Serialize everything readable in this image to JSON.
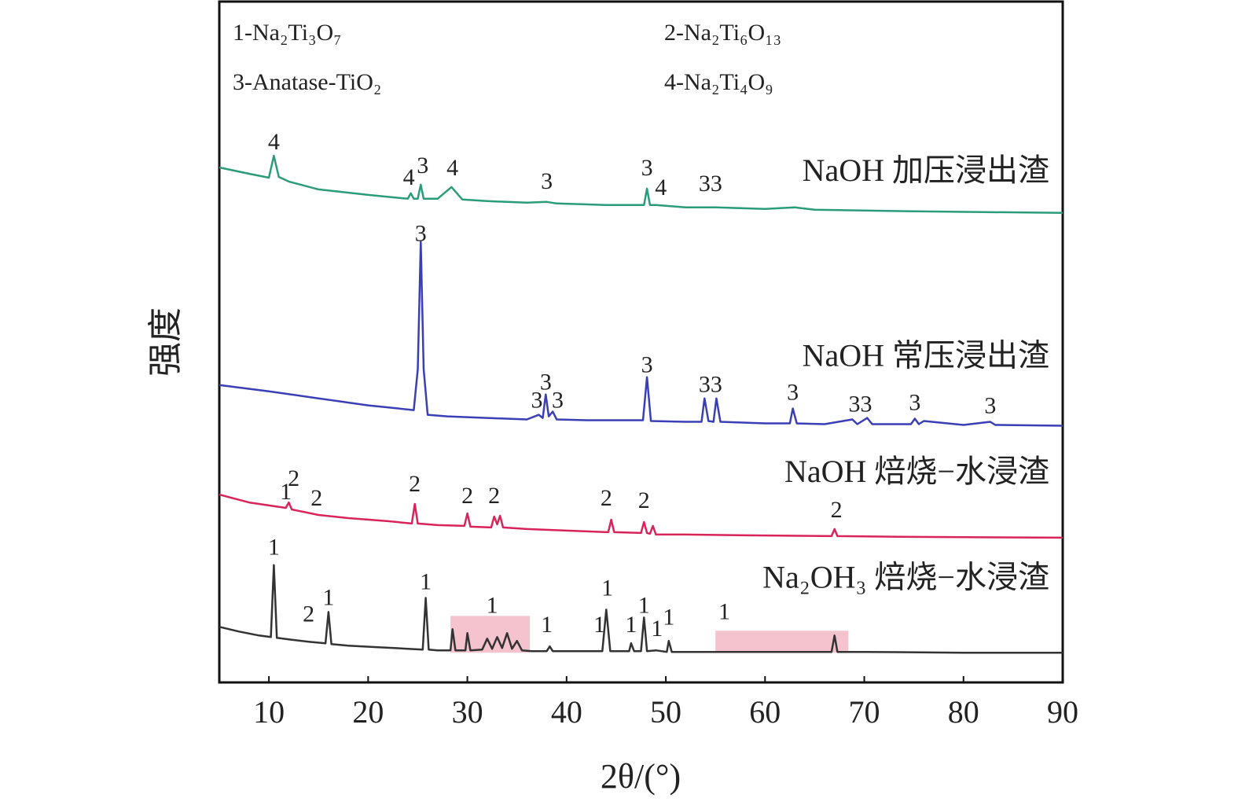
{
  "chart_data": {
    "type": "line",
    "x_label": "2θ/(°)",
    "y_label": "强度",
    "xlim": [
      5,
      90
    ],
    "xticks": [
      10,
      20,
      30,
      40,
      50,
      60,
      70,
      80,
      90
    ],
    "ylim": [
      0,
      87
    ],
    "legend_notes": [
      "1-Na₂Ti₃O₇",
      "2-Na₂Ti₆O₁₃",
      "3-Anatase-TiO₂",
      "4-Na₂Ti₄O₉"
    ],
    "series": [
      {
        "name": "NaOH 加压浸出渣",
        "color": "#2a9c7a",
        "x": [
          5,
          8,
          10,
          10.5,
          11,
          12,
          15,
          20,
          24,
          24.3,
          24.6,
          25,
          25.3,
          25.6,
          27,
          28.4,
          29.5,
          32,
          36,
          38,
          39,
          44,
          47.8,
          48.1,
          48.4,
          49,
          52,
          55,
          60,
          63,
          65,
          75,
          90
        ],
        "values": [
          65.8,
          65.0,
          64.5,
          67.3,
          64.6,
          64.0,
          63.0,
          62.3,
          61.8,
          62.5,
          61.8,
          61.8,
          63.6,
          61.8,
          61.8,
          63.3,
          61.7,
          61.5,
          61.3,
          61.4,
          61.2,
          61.0,
          61.0,
          63.1,
          61.0,
          61.0,
          60.7,
          60.7,
          60.5,
          60.7,
          60.4,
          60.2,
          60.0
        ]
      },
      {
        "name": "NaOH 常压浸出渣",
        "color": "#3a3fb5",
        "x": [
          5,
          10,
          15,
          20,
          24.6,
          25.0,
          25.3,
          25.6,
          26.0,
          28,
          32,
          36,
          37.2,
          37.6,
          37.9,
          38.2,
          38.6,
          39.0,
          42,
          47.7,
          48.1,
          48.5,
          52,
          53.6,
          53.9,
          54.3,
          54.8,
          55.1,
          55.5,
          60,
          62.5,
          62.8,
          63.2,
          66,
          68.8,
          69.3,
          70.3,
          70.8,
          74.7,
          75.1,
          75.5,
          76,
          80,
          82.7,
          83.2,
          90
        ],
        "values": [
          38.0,
          37.2,
          36.3,
          35.4,
          34.8,
          40,
          56.3,
          40,
          34.2,
          34.0,
          33.8,
          33.6,
          34.2,
          33.8,
          36.8,
          34.0,
          34.6,
          33.6,
          33.5,
          33.5,
          39.0,
          33.4,
          33.3,
          33.3,
          36.3,
          33.4,
          33.3,
          36.3,
          33.3,
          33.1,
          33.1,
          35.0,
          33.1,
          33.0,
          33.6,
          33.0,
          33.8,
          33.0,
          33.0,
          33.7,
          33.0,
          33.4,
          32.9,
          33.3,
          32.9,
          32.8
        ]
      },
      {
        "name": "NaOH 焙烧−水浸渣",
        "color": "#d8245a",
        "x": [
          5,
          8,
          11.7,
          12,
          12.3,
          15,
          18,
          22,
          24.4,
          24.7,
          25,
          27,
          29.7,
          30,
          30.3,
          32.4,
          32.7,
          33,
          33.3,
          33.6,
          36,
          40,
          44.2,
          44.5,
          44.8,
          47.5,
          47.8,
          48.1,
          48.4,
          48.7,
          49,
          52,
          58,
          66.7,
          67,
          67.3,
          75,
          90
        ],
        "values": [
          24.0,
          23.0,
          22.3,
          23.0,
          22.1,
          21.4,
          21.0,
          20.6,
          20.3,
          22.8,
          20.3,
          20.1,
          20.0,
          21.6,
          19.9,
          19.8,
          21.2,
          20.2,
          21.3,
          19.8,
          19.6,
          19.4,
          19.2,
          20.8,
          19.2,
          19.1,
          20.5,
          19.1,
          19.0,
          20.0,
          18.9,
          18.9,
          18.8,
          18.7,
          19.6,
          18.7,
          18.6,
          18.5
        ]
      },
      {
        "name": "Na₂OH₃ 焙烧−水浸渣",
        "color": "#333333",
        "x": [
          5,
          7,
          9,
          10.2,
          10.5,
          10.8,
          12,
          14,
          15.7,
          16,
          16.3,
          18,
          21,
          24,
          25.5,
          25.8,
          26.1,
          27,
          28.3,
          28.5,
          28.8,
          29.8,
          30,
          30.3,
          31.5,
          32,
          32.5,
          33,
          33.5,
          34,
          34.5,
          35,
          35.5,
          36.5,
          38,
          38.3,
          38.6,
          41,
          43.6,
          44,
          44.4,
          46.3,
          46.5,
          46.8,
          47.5,
          47.8,
          48.1,
          49,
          50.1,
          50.3,
          50.6,
          55,
          60,
          66.7,
          67,
          67.3,
          70,
          80,
          90
        ],
        "values": [
          7.1,
          6.5,
          6.0,
          5.8,
          15.0,
          5.7,
          5.5,
          5.2,
          5.0,
          9.0,
          4.9,
          4.7,
          4.5,
          4.3,
          4.2,
          10.8,
          4.2,
          4.1,
          4.1,
          6.8,
          4.1,
          4.1,
          6.3,
          4.1,
          4.2,
          5.6,
          4.3,
          5.8,
          4.4,
          6.3,
          4.3,
          5.3,
          4.1,
          4.0,
          4.0,
          4.6,
          4.0,
          4.0,
          4.0,
          9.3,
          4.0,
          4.0,
          5.0,
          4.0,
          4.0,
          8.3,
          4.0,
          4.1,
          3.9,
          5.3,
          3.9,
          3.9,
          3.9,
          3.9,
          6.0,
          3.9,
          3.9,
          3.8,
          3.8
        ]
      }
    ],
    "highlight_regions": [
      {
        "x": [
          28.3,
          36.3
        ],
        "y": [
          3.8,
          8.5
        ]
      },
      {
        "x": [
          55,
          68.4
        ],
        "y": [
          3.8,
          6.6
        ]
      }
    ],
    "annotations": [
      {
        "text": "4",
        "x": 10.5,
        "y": 68.8
      },
      {
        "text": "4",
        "x": 24.1,
        "y": 64.3
      },
      {
        "text": "3",
        "x": 25.5,
        "y": 65.8
      },
      {
        "text": "4",
        "x": 28.5,
        "y": 65.5
      },
      {
        "text": "3",
        "x": 38,
        "y": 63.8
      },
      {
        "text": "3",
        "x": 48.1,
        "y": 65.5
      },
      {
        "text": "4",
        "x": 49.5,
        "y": 63
      },
      {
        "text": "33",
        "x": 54.5,
        "y": 63.5
      },
      {
        "text": "3",
        "x": 25.3,
        "y": 57.1
      },
      {
        "text": "3",
        "x": 37,
        "y": 35.8
      },
      {
        "text": "3",
        "x": 37.9,
        "y": 38.1
      },
      {
        "text": "3",
        "x": 39.1,
        "y": 35.8
      },
      {
        "text": "3",
        "x": 48.1,
        "y": 40.3
      },
      {
        "text": "33",
        "x": 54.5,
        "y": 37.8
      },
      {
        "text": "3",
        "x": 62.8,
        "y": 36.8
      },
      {
        "text": "33",
        "x": 69.6,
        "y": 35.3
      },
      {
        "text": "3",
        "x": 75.1,
        "y": 35.5
      },
      {
        "text": "3",
        "x": 82.7,
        "y": 35.1
      },
      {
        "text": "1",
        "x": 11.7,
        "y": 24.1
      },
      {
        "text": "2",
        "x": 12.5,
        "y": 25.8
      },
      {
        "text": "2",
        "x": 14.8,
        "y": 23.3
      },
      {
        "text": "2",
        "x": 24.7,
        "y": 25.1
      },
      {
        "text": "2",
        "x": 30,
        "y": 23.6
      },
      {
        "text": "2",
        "x": 32.7,
        "y": 23.6
      },
      {
        "text": "2",
        "x": 44,
        "y": 23.3
      },
      {
        "text": "2",
        "x": 47.8,
        "y": 23
      },
      {
        "text": "2",
        "x": 67.2,
        "y": 21.8
      },
      {
        "text": "1",
        "x": 10.5,
        "y": 17
      },
      {
        "text": "2",
        "x": 14,
        "y": 8.5
      },
      {
        "text": "1",
        "x": 16,
        "y": 10.6
      },
      {
        "text": "1",
        "x": 25.8,
        "y": 12.6
      },
      {
        "text": "1",
        "x": 32.5,
        "y": 9.6
      },
      {
        "text": "1",
        "x": 38,
        "y": 7.1
      },
      {
        "text": "1",
        "x": 43.3,
        "y": 7.1
      },
      {
        "text": "1",
        "x": 44.1,
        "y": 11.8
      },
      {
        "text": "1",
        "x": 46.5,
        "y": 7.1
      },
      {
        "text": "1",
        "x": 47.8,
        "y": 9.6
      },
      {
        "text": "1",
        "x": 49.1,
        "y": 6.6
      },
      {
        "text": "1",
        "x": 50.3,
        "y": 8.1
      },
      {
        "text": "1",
        "x": 55.9,
        "y": 8.8
      }
    ]
  }
}
